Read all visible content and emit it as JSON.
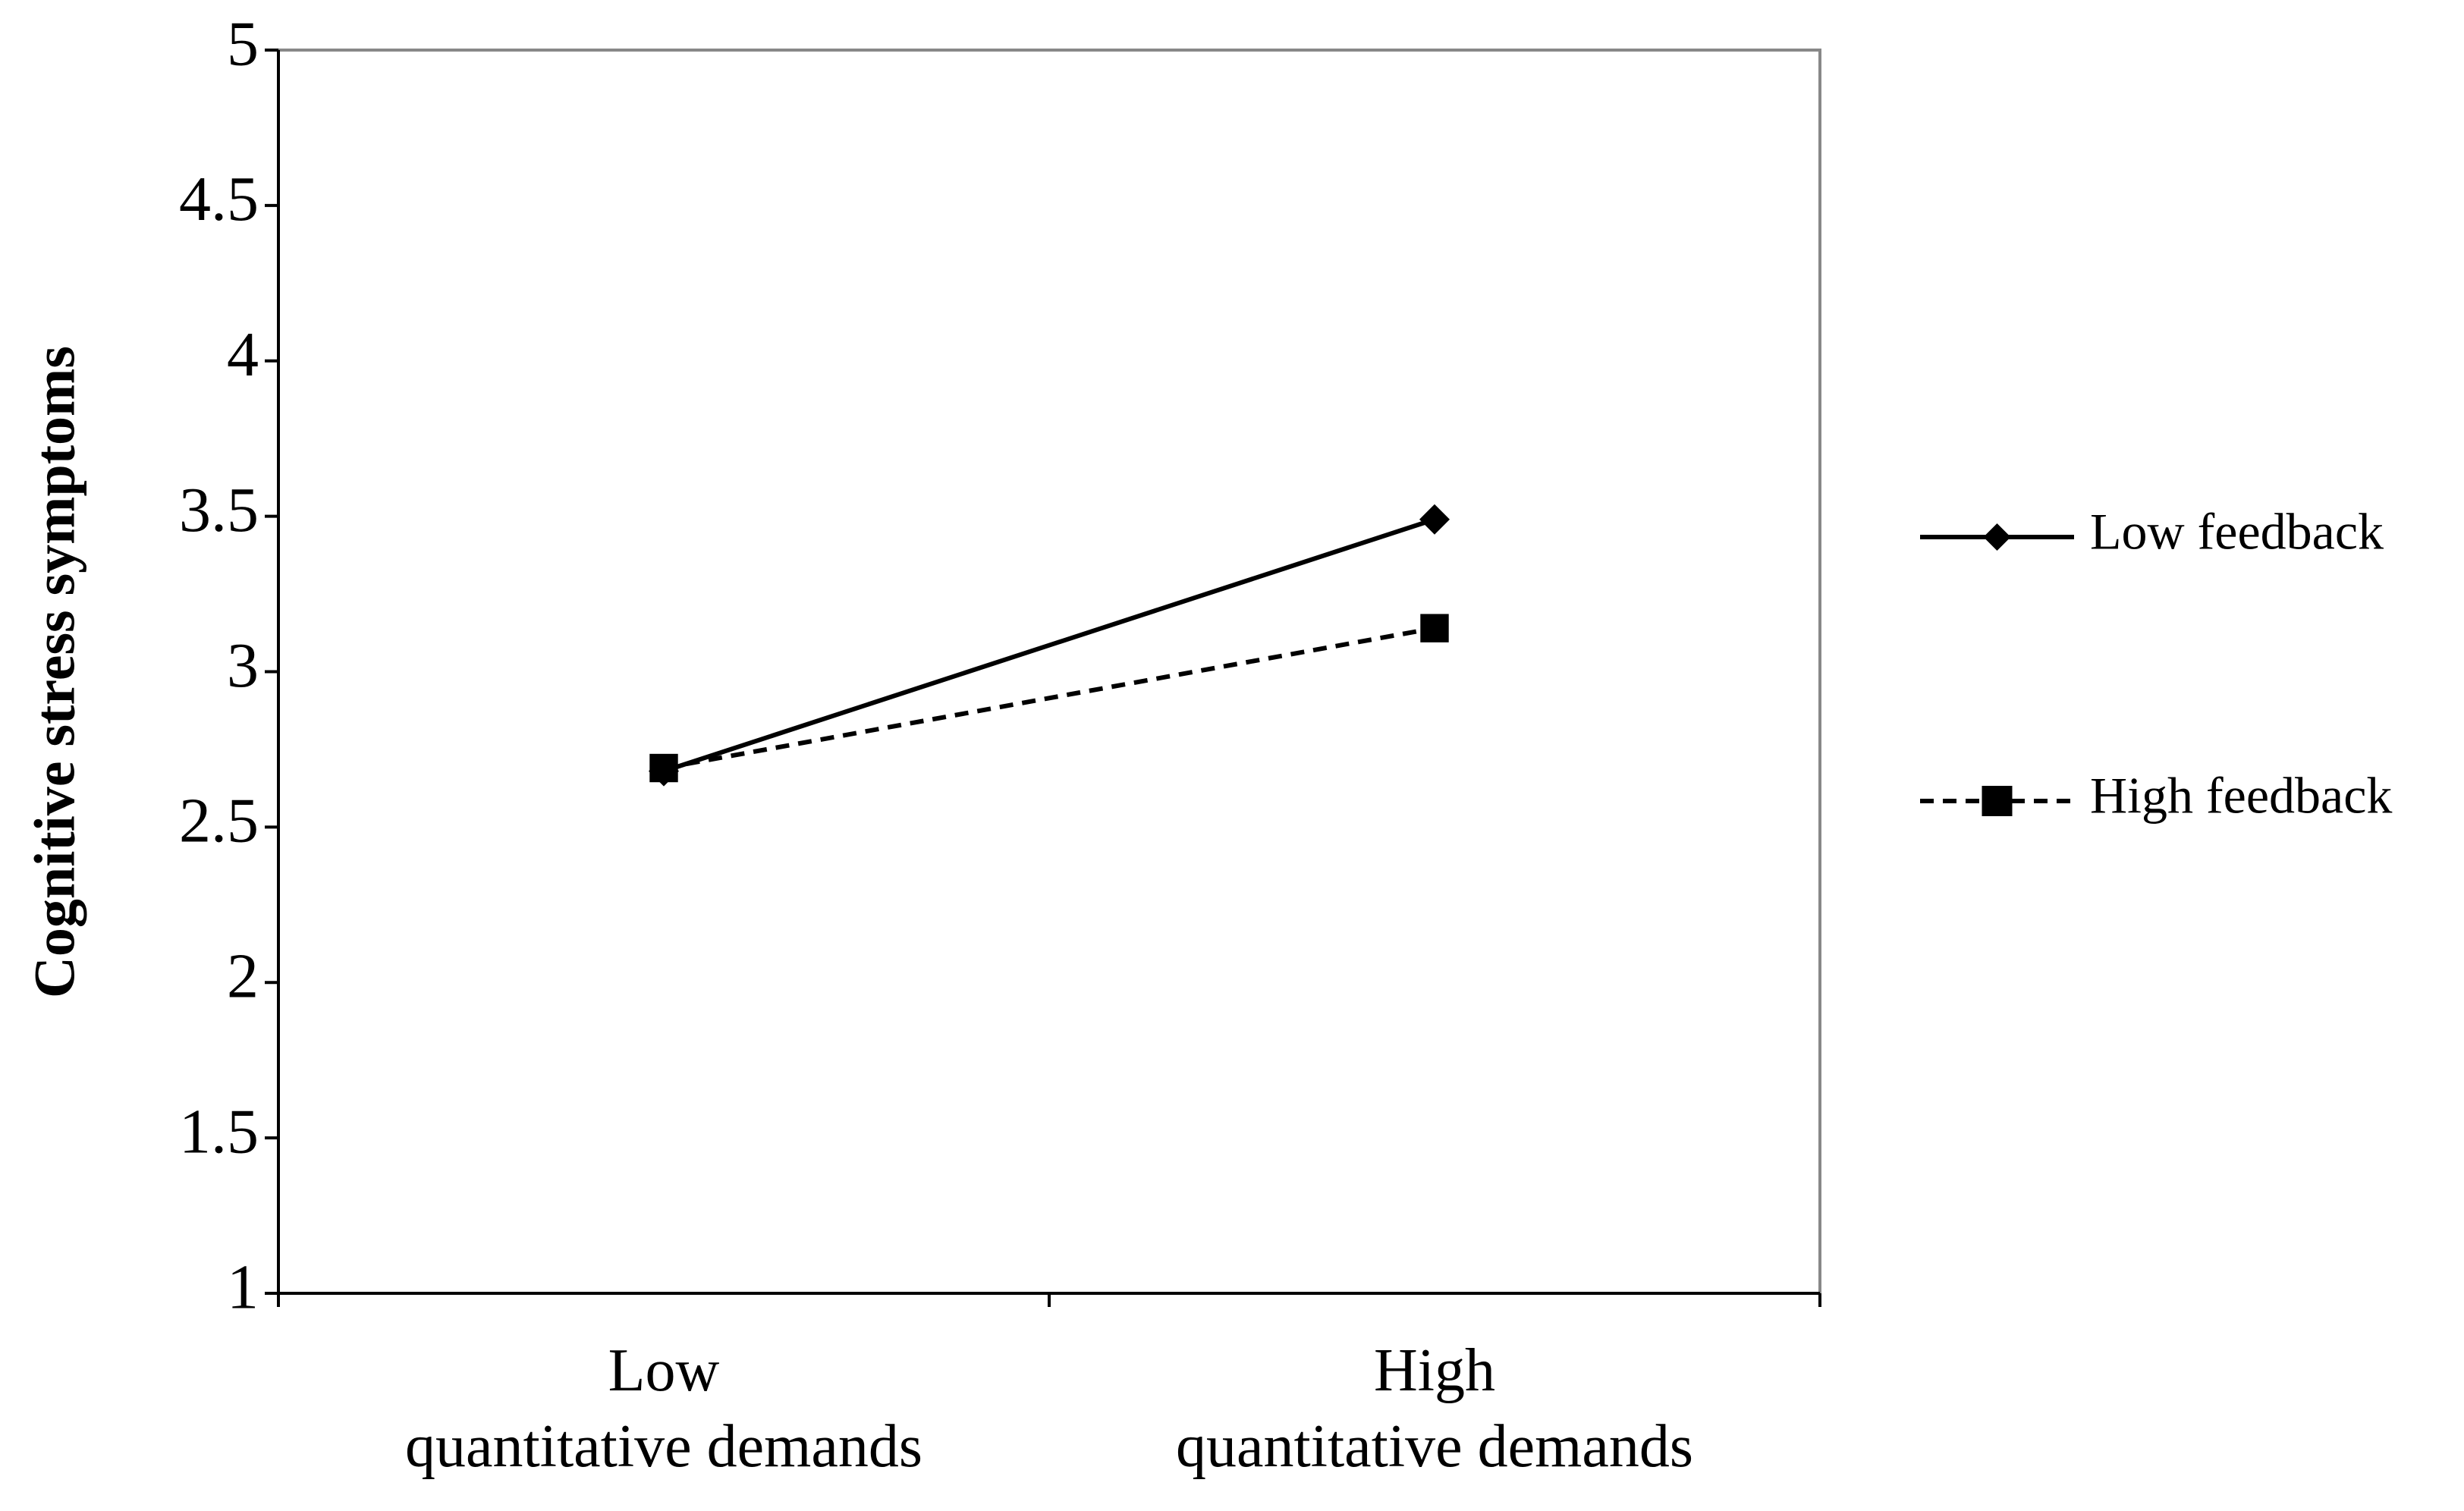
{
  "chart_data": {
    "type": "line",
    "ylabel": "Cognitive stress symptoms",
    "categories": [
      "Low\nquantitative demands",
      "High\nquantitative demands"
    ],
    "series": [
      {
        "name": "Low feedback",
        "color": "#000000",
        "marker": "diamond",
        "linestyle": "solid",
        "values": [
          2.68,
          3.49
        ]
      },
      {
        "name": "High feedback",
        "color": "#000000",
        "marker": "square",
        "linestyle": "dashed",
        "values": [
          2.69,
          3.14
        ]
      }
    ],
    "ylim": [
      1,
      5
    ],
    "yticks": [
      1,
      1.5,
      2,
      2.5,
      3,
      3.5,
      4,
      4.5,
      5
    ],
    "legend": "right"
  }
}
